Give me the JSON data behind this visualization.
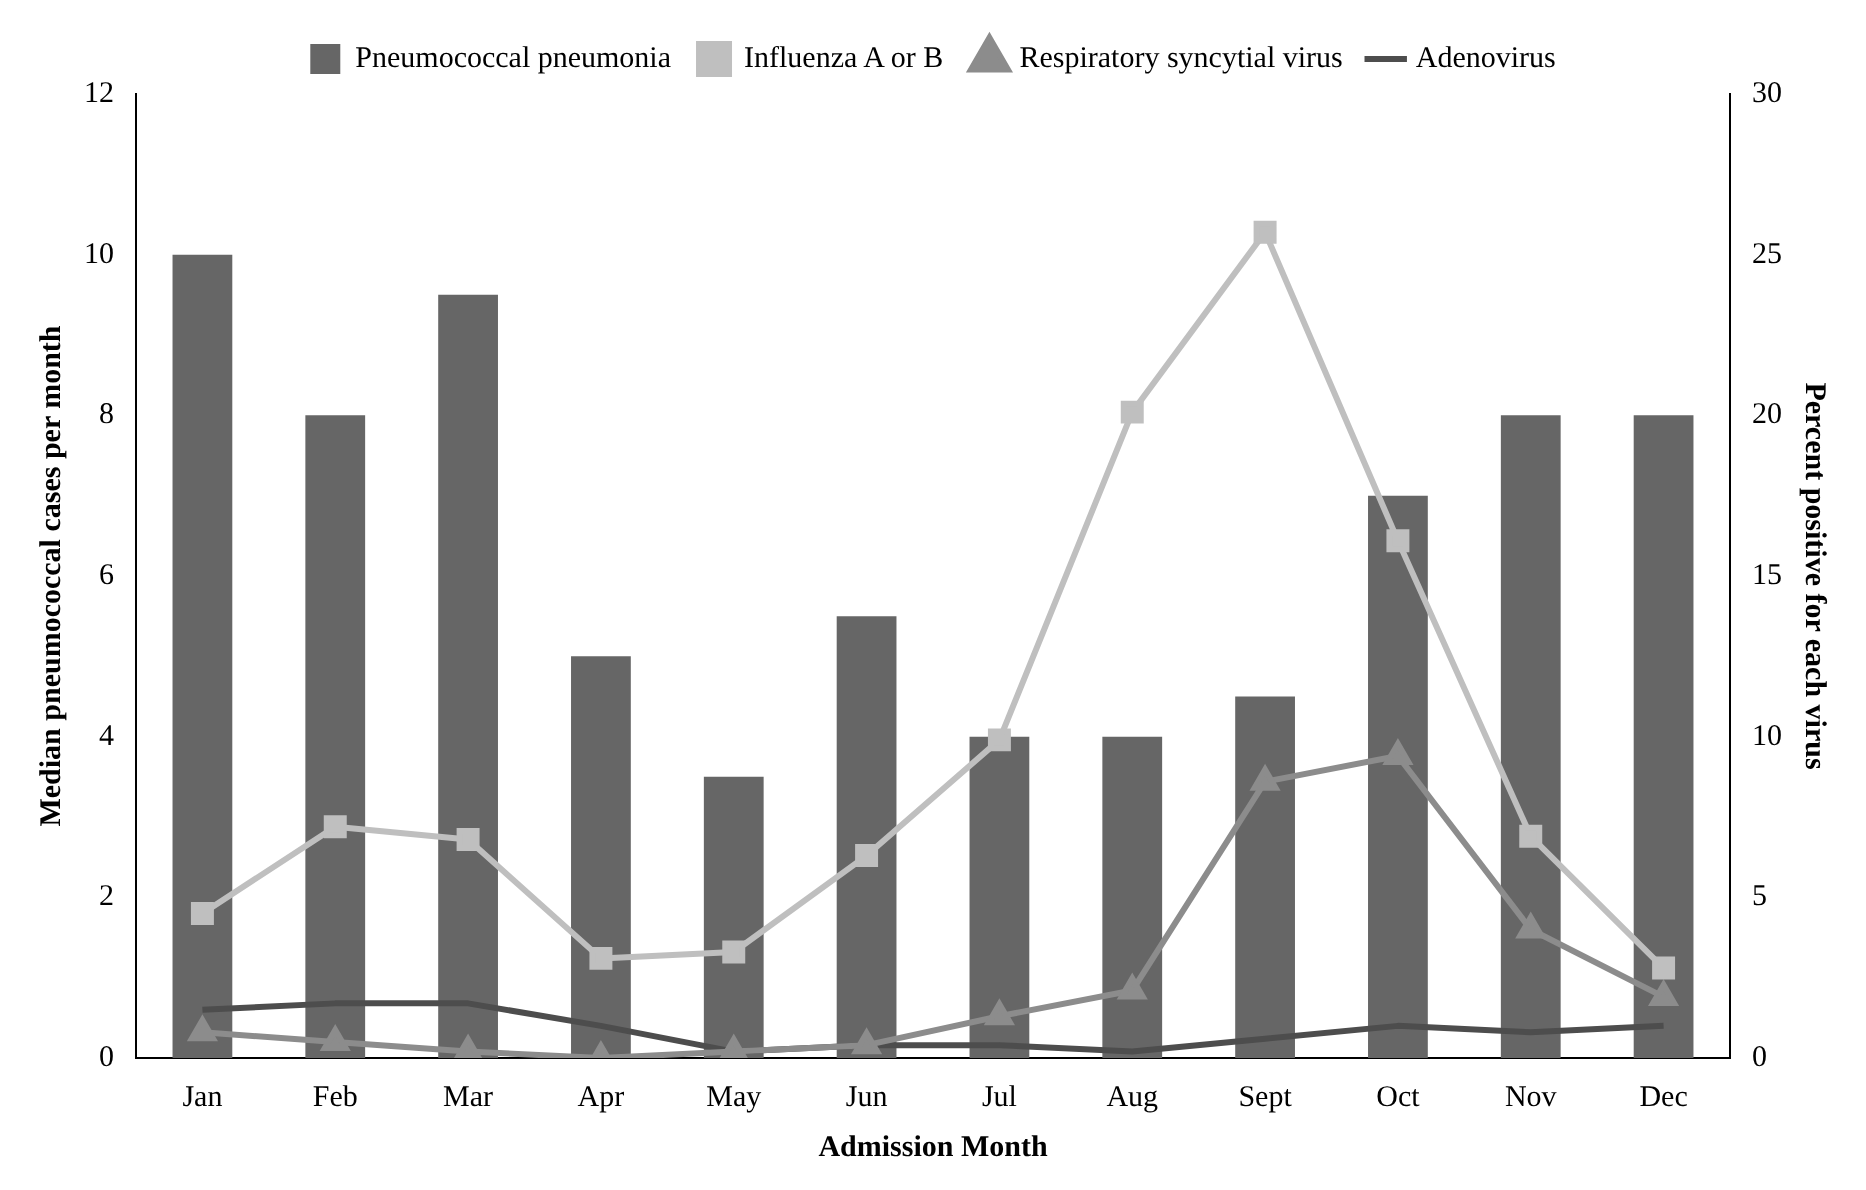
{
  "chart_data": {
    "type": "bar",
    "xlabel": "Admission Month",
    "ylabel": "Median pneumococcal cases per month",
    "y2label": "Percent positive for each virus",
    "categories": [
      "Jan",
      "Feb",
      "Mar",
      "Apr",
      "May",
      "Jun",
      "Jul",
      "Aug",
      "Sept",
      "Oct",
      "Nov",
      "Dec"
    ],
    "series": [
      {
        "name": "Pneumococcal pneumonia",
        "color": "#666666",
        "values": [
          10,
          8,
          9.5,
          5,
          3.5,
          5.5,
          4,
          4,
          4.5,
          7,
          8,
          8
        ]
      },
      {
        "name": "Influenza A or B",
        "type": "line",
        "axis": "y2",
        "marker": "square",
        "color": "#bfbfbf",
        "values": [
          4.5,
          7.2,
          6.8,
          3.1,
          3.3,
          6.3,
          9.9,
          20.1,
          25.7,
          16.1,
          6.9,
          2.8
        ]
      },
      {
        "name": "Respiratory syncytial virus",
        "type": "line",
        "axis": "y2",
        "marker": "triangle",
        "color": "#8c8c8c",
        "values": [
          0.8,
          0.5,
          0.2,
          0,
          0.2,
          0.4,
          1.3,
          2.1,
          8.6,
          9.4,
          4.0,
          1.9
        ]
      },
      {
        "name": "Adenovirus",
        "type": "line",
        "axis": "y2",
        "marker": "none",
        "color": "#4d4d4d",
        "values": [
          1.5,
          1.7,
          1.7,
          1.0,
          0.2,
          0.4,
          0.4,
          0.2,
          0.6,
          1.0,
          0.8,
          1.0
        ]
      }
    ],
    "ylim": [
      0,
      12
    ],
    "yticks": [
      0,
      2,
      4,
      6,
      8,
      10,
      12
    ],
    "y2lim": [
      0,
      30
    ],
    "y2ticks": [
      0,
      5,
      10,
      15,
      20,
      25,
      30
    ],
    "grid": false,
    "legend": "top",
    "line_style": "solid"
  }
}
